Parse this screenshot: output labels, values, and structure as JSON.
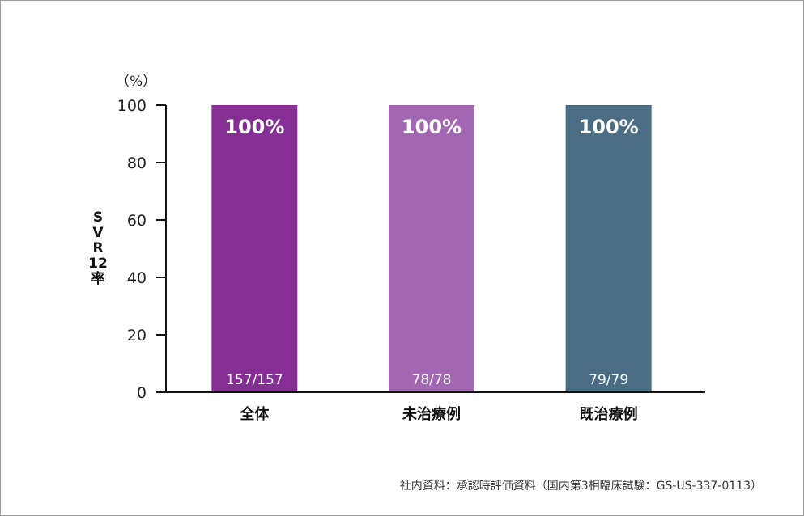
{
  "chart_data": {
    "type": "bar",
    "categories": [
      "全体",
      "未治療例",
      "既治療例"
    ],
    "values": [
      100,
      100,
      100
    ],
    "value_labels": [
      "100%",
      "100%",
      "100%"
    ],
    "n_labels": [
      "157/157",
      "78/78",
      "79/79"
    ],
    "colors": [
      "#852f95",
      "#a366b3",
      "#4b6d83"
    ],
    "ylabel_chars": [
      "S",
      "V",
      "R",
      "12",
      "率"
    ],
    "unit": "（%）",
    "ylim": [
      0,
      100
    ],
    "yticks": [
      0,
      20,
      40,
      60,
      80,
      100
    ],
    "grid": false,
    "legend": "none"
  },
  "source_note": "社内資料：承認時評価資料（国内第3相臨床試験：GS-US-337-0113）"
}
